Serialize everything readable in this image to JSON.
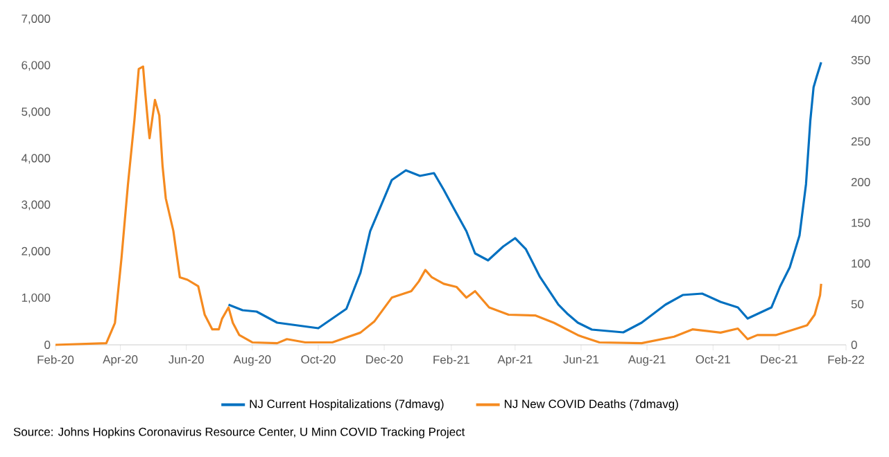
{
  "chart_data": {
    "type": "line",
    "xlim": [
      "2020-02-01",
      "2022-02-01"
    ],
    "xticks": [
      {
        "value": "2020-02-01",
        "label": "Feb-20"
      },
      {
        "value": "2020-04-01",
        "label": "Apr-20"
      },
      {
        "value": "2020-06-01",
        "label": "Jun-20"
      },
      {
        "value": "2020-08-01",
        "label": "Aug-20"
      },
      {
        "value": "2020-10-01",
        "label": "Oct-20"
      },
      {
        "value": "2020-12-01",
        "label": "Dec-20"
      },
      {
        "value": "2021-02-01",
        "label": "Feb-21"
      },
      {
        "value": "2021-04-01",
        "label": "Apr-21"
      },
      {
        "value": "2021-06-01",
        "label": "Jun-21"
      },
      {
        "value": "2021-08-01",
        "label": "Aug-21"
      },
      {
        "value": "2021-10-01",
        "label": "Oct-21"
      },
      {
        "value": "2021-12-01",
        "label": "Dec-21"
      },
      {
        "value": "2022-02-01",
        "label": "Feb-22"
      }
    ],
    "ylim": [
      0,
      7000
    ],
    "yticks": [
      0,
      {
        "value": 1000,
        "label": "1,000"
      },
      {
        "value": 2000,
        "label": "2,000"
      },
      {
        "value": 3000,
        "label": "3,000"
      },
      {
        "value": 4000,
        "label": "4,000"
      },
      {
        "value": 5000,
        "label": "5,000"
      },
      {
        "value": 6000,
        "label": "6,000"
      },
      {
        "value": 7000,
        "label": "7,000"
      }
    ],
    "y2lim": [
      0,
      400
    ],
    "y2ticks": [
      0,
      50,
      100,
      150,
      200,
      250,
      300,
      350,
      400
    ],
    "grid": false,
    "legend": "bottom",
    "annotations": [
      "Source: Johns Hopkins Coronavirus Resource Center, U Minn COVID Tracking Project"
    ],
    "series": [
      {
        "name": "NJ Current Hospitalizations (7dmavg)",
        "color": "#0070c0",
        "x": [
          "2020-07-10",
          "2020-07-23",
          "2020-08-05",
          "2020-08-24",
          "2020-09-12",
          "2020-10-01",
          "2020-10-27",
          "2020-11-09",
          "2020-11-18",
          "2020-12-01",
          "2020-12-08",
          "2020-12-21",
          "2021-01-03",
          "2021-01-16",
          "2021-01-25",
          "2021-02-03",
          "2021-02-15",
          "2021-02-23",
          "2021-03-07",
          "2021-03-21",
          "2021-04-01",
          "2021-04-11",
          "2021-04-24",
          "2021-05-11",
          "2021-05-20",
          "2021-05-29",
          "2021-06-11",
          "2021-07-10",
          "2021-07-27",
          "2021-08-18",
          "2021-09-03",
          "2021-09-21",
          "2021-10-08",
          "2021-10-24",
          "2021-11-02",
          "2021-11-24",
          "2021-12-02",
          "2021-12-11",
          "2021-12-20",
          "2021-12-26",
          "2021-12-30",
          "2022-01-02",
          "2022-01-05",
          "2022-01-09"
        ],
        "values": [
          864,
          745,
          715,
          477,
          417,
          357,
          775,
          1549,
          2443,
          3158,
          3545,
          3754,
          3634,
          3694,
          3336,
          2949,
          2443,
          1966,
          1817,
          2115,
          2294,
          2056,
          1460,
          864,
          655,
          477,
          328,
          268,
          477,
          864,
          1072,
          1102,
          923,
          804,
          566,
          804,
          1251,
          1668,
          2353,
          3456,
          4826,
          5541,
          5779,
          6077
        ]
      },
      {
        "name": "NJ New COVID Deaths (7dmavg)",
        "color": "#f58a1f",
        "axis": "y2",
        "x": [
          "2020-02-01",
          "2020-03-19",
          "2020-03-27",
          "2020-04-02",
          "2020-04-08",
          "2020-04-14",
          "2020-04-18",
          "2020-04-22",
          "2020-04-24",
          "2020-04-27",
          "2020-04-28",
          "2020-05-03",
          "2020-05-07",
          "2020-05-10",
          "2020-05-13",
          "2020-05-20",
          "2020-05-26",
          "2020-06-02",
          "2020-06-12",
          "2020-06-18",
          "2020-06-25",
          "2020-07-01",
          "2020-07-04",
          "2020-07-10",
          "2020-07-14",
          "2020-07-20",
          "2020-08-01",
          "2020-08-24",
          "2020-09-02",
          "2020-09-19",
          "2020-10-14",
          "2020-11-09",
          "2020-11-22",
          "2020-12-08",
          "2020-12-26",
          "2021-01-02",
          "2021-01-08",
          "2021-01-14",
          "2021-01-25",
          "2021-02-06",
          "2021-02-15",
          "2021-02-23",
          "2021-03-08",
          "2021-03-26",
          "2021-04-20",
          "2021-05-07",
          "2021-05-29",
          "2021-06-02",
          "2021-06-18",
          "2021-07-27",
          "2021-08-26",
          "2021-09-12",
          "2021-10-08",
          "2021-10-24",
          "2021-11-02",
          "2021-11-11",
          "2021-11-28",
          "2021-12-15",
          "2021-12-27",
          "2022-01-03",
          "2022-01-08",
          "2022-01-09"
        ],
        "values": [
          0,
          2,
          27,
          106,
          197,
          276,
          339,
          342,
          310,
          266,
          254,
          301,
          282,
          220,
          180,
          140,
          83,
          80,
          72,
          37,
          19,
          19,
          32,
          46,
          27,
          12,
          3,
          2,
          7,
          3,
          3,
          15,
          29,
          58,
          66,
          78,
          92,
          83,
          75,
          71,
          58,
          66,
          46,
          37,
          36,
          27,
          12,
          10,
          3,
          2,
          10,
          19,
          15,
          20,
          7,
          12,
          12,
          19,
          24,
          37,
          61,
          75
        ]
      }
    ]
  }
}
